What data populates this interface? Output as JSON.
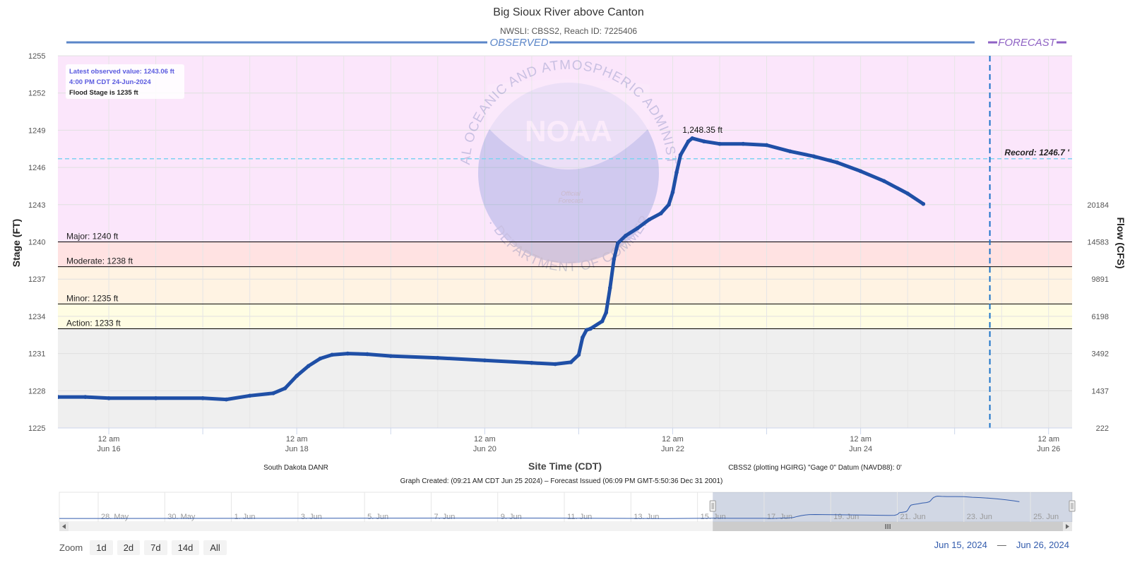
{
  "chart_data": {
    "type": "line",
    "title": "Big Sioux River above Canton",
    "subtitle": "NWSLI: CBSS2, Reach ID: 7225406",
    "xlabel": "Site Time (CDT)",
    "ylabel": "Stage (FT)",
    "y2label": "Flow (CFS)",
    "xlim": [
      "2024-06-15T11:00",
      "2024-06-26T06:00"
    ],
    "ylim": [
      1225,
      1255
    ],
    "y_ticks": [
      "1225",
      "1228",
      "1231",
      "1234",
      "1237",
      "1240",
      "1243",
      "1246",
      "1249",
      "1252",
      "1255"
    ],
    "y2_ticks": [
      {
        "stage": 1225,
        "label": "222"
      },
      {
        "stage": 1228,
        "label": "1437"
      },
      {
        "stage": 1231,
        "label": "3492"
      },
      {
        "stage": 1234,
        "label": "6198"
      },
      {
        "stage": 1237,
        "label": "9891"
      },
      {
        "stage": 1240,
        "label": "14583"
      },
      {
        "stage": 1243,
        "label": "20184"
      }
    ],
    "x_ticks": [
      {
        "t": "2024-06-16T00:00",
        "line1": "12 am",
        "line2": "Jun 16"
      },
      {
        "t": "2024-06-18T00:00",
        "line1": "12 am",
        "line2": "Jun 18"
      },
      {
        "t": "2024-06-20T00:00",
        "line1": "12 am",
        "line2": "Jun 20"
      },
      {
        "t": "2024-06-22T00:00",
        "line1": "12 am",
        "line2": "Jun 22"
      },
      {
        "t": "2024-06-24T00:00",
        "line1": "12 am",
        "line2": "Jun 24"
      },
      {
        "t": "2024-06-26T00:00",
        "line1": "12 am",
        "line2": "Jun 26"
      }
    ],
    "flood_categories": [
      {
        "label": "Major: 1240 ft",
        "stage": 1240,
        "color": "#ffe0e0"
      },
      {
        "label": "Moderate: 1238 ft",
        "stage": 1238,
        "color": "#ffe0e0"
      },
      {
        "label": "Minor: 1235 ft",
        "stage": 1235,
        "color": "#fff3e0"
      },
      {
        "label": "Action: 1233 ft",
        "stage": 1233,
        "color": "#ffffe0"
      }
    ],
    "zone_colors": {
      "above_major": "#fbe6fb",
      "major": "#ffe2e2",
      "minor": "#fff3e3",
      "action": "#fffde3",
      "normal": "#efefef"
    },
    "record": {
      "label": "Record: 1246.7 '",
      "stage": 1246.7
    },
    "peak": {
      "label": "1,248.35 ft",
      "t": "2024-06-22T05:00",
      "stage": 1248.35
    },
    "forecast_issued_at": "2024-06-25T09:00",
    "observed_label": "OBSERVED",
    "forecast_label": "FORECAST",
    "info_box": {
      "line1": "Latest observed value: 1243.06 ft",
      "line2": "4:00 PM CDT 24-Jun-2024",
      "line3": "Flood Stage is 1235 ft"
    },
    "series": [
      {
        "name": "Observed",
        "color": "#1f4fa6",
        "points": [
          [
            "2024-06-15T11:00",
            1227.5
          ],
          [
            "2024-06-15T18:00",
            1227.5
          ],
          [
            "2024-06-16T00:00",
            1227.4
          ],
          [
            "2024-06-16T12:00",
            1227.4
          ],
          [
            "2024-06-17T00:00",
            1227.4
          ],
          [
            "2024-06-17T06:00",
            1227.3
          ],
          [
            "2024-06-17T12:00",
            1227.6
          ],
          [
            "2024-06-17T18:00",
            1227.8
          ],
          [
            "2024-06-17T21:00",
            1228.2
          ],
          [
            "2024-06-18T00:00",
            1229.2
          ],
          [
            "2024-06-18T03:00",
            1230.0
          ],
          [
            "2024-06-18T06:00",
            1230.6
          ],
          [
            "2024-06-18T09:00",
            1230.9
          ],
          [
            "2024-06-18T13:00",
            1231.0
          ],
          [
            "2024-06-18T18:00",
            1230.95
          ],
          [
            "2024-06-19T00:00",
            1230.8
          ],
          [
            "2024-06-19T12:00",
            1230.65
          ],
          [
            "2024-06-20T00:00",
            1230.45
          ],
          [
            "2024-06-20T12:00",
            1230.25
          ],
          [
            "2024-06-20T18:00",
            1230.15
          ],
          [
            "2024-06-20T22:00",
            1230.3
          ],
          [
            "2024-06-21T00:00",
            1230.9
          ],
          [
            "2024-06-21T01:00",
            1232.3
          ],
          [
            "2024-06-21T02:00",
            1232.9
          ],
          [
            "2024-06-21T03:00",
            1233.0
          ],
          [
            "2024-06-21T06:00",
            1233.6
          ],
          [
            "2024-06-21T07:00",
            1234.3
          ],
          [
            "2024-06-21T08:00",
            1236.3
          ],
          [
            "2024-06-21T09:00",
            1238.6
          ],
          [
            "2024-06-21T10:00",
            1239.9
          ],
          [
            "2024-06-21T12:00",
            1240.5
          ],
          [
            "2024-06-21T15:00",
            1241.1
          ],
          [
            "2024-06-21T18:00",
            1241.8
          ],
          [
            "2024-06-21T21:00",
            1242.3
          ],
          [
            "2024-06-21T23:00",
            1243.0
          ],
          [
            "2024-06-22T00:00",
            1244.0
          ],
          [
            "2024-06-22T01:00",
            1245.6
          ],
          [
            "2024-06-22T02:00",
            1247.0
          ],
          [
            "2024-06-22T04:00",
            1248.1
          ],
          [
            "2024-06-22T05:00",
            1248.35
          ],
          [
            "2024-06-22T08:00",
            1248.1
          ],
          [
            "2024-06-22T12:00",
            1247.9
          ],
          [
            "2024-06-22T18:00",
            1247.9
          ],
          [
            "2024-06-23T00:00",
            1247.8
          ],
          [
            "2024-06-23T06:00",
            1247.3
          ],
          [
            "2024-06-23T12:00",
            1246.9
          ],
          [
            "2024-06-23T18:00",
            1246.4
          ],
          [
            "2024-06-24T00:00",
            1245.7
          ],
          [
            "2024-06-24T06:00",
            1244.9
          ],
          [
            "2024-06-24T12:00",
            1243.9
          ],
          [
            "2024-06-24T16:00",
            1243.06
          ]
        ]
      }
    ]
  },
  "footer": {
    "source": "South Dakota DANR",
    "datum": "CBSS2 (plotting HGIRG) \"Gage 0\" Datum (NAVD88): 0'",
    "created": "Graph Created: (09:21 AM CDT Jun 25 2024) – Forecast Issued (06:09 PM GMT-5:50:36 Dec 31 2001)"
  },
  "watermark": {
    "top_text": "NATIONAL OCEANIC AND ATMOSPHERIC ADMINISTRATION",
    "bottom_text": "U.S. DEPARTMENT OF COMMERCE",
    "logo_text": "NOAA",
    "official": "Official",
    "forecast": "Forecast"
  },
  "navigator": {
    "labels": [
      "28. May",
      "30. May",
      "1. Jun",
      "3. Jun",
      "5. Jun",
      "7. Jun",
      "9. Jun",
      "11. Jun",
      "13. Jun",
      "15. Jun",
      "17. Jun",
      "19. Jun",
      "21. Jun",
      "23. Jun",
      "25. Jun"
    ],
    "start": "2024-05-26T20:00",
    "end": "2024-06-26T06:00",
    "selected_start": "2024-06-15T11:00",
    "selected_end": "2024-06-26T06:00"
  },
  "zoom": {
    "label": "Zoom",
    "buttons": [
      "1d",
      "2d",
      "7d",
      "14d",
      "All"
    ]
  },
  "range": {
    "from": "Jun 15, 2024",
    "separator": "—",
    "to": "Jun 26, 2024"
  }
}
